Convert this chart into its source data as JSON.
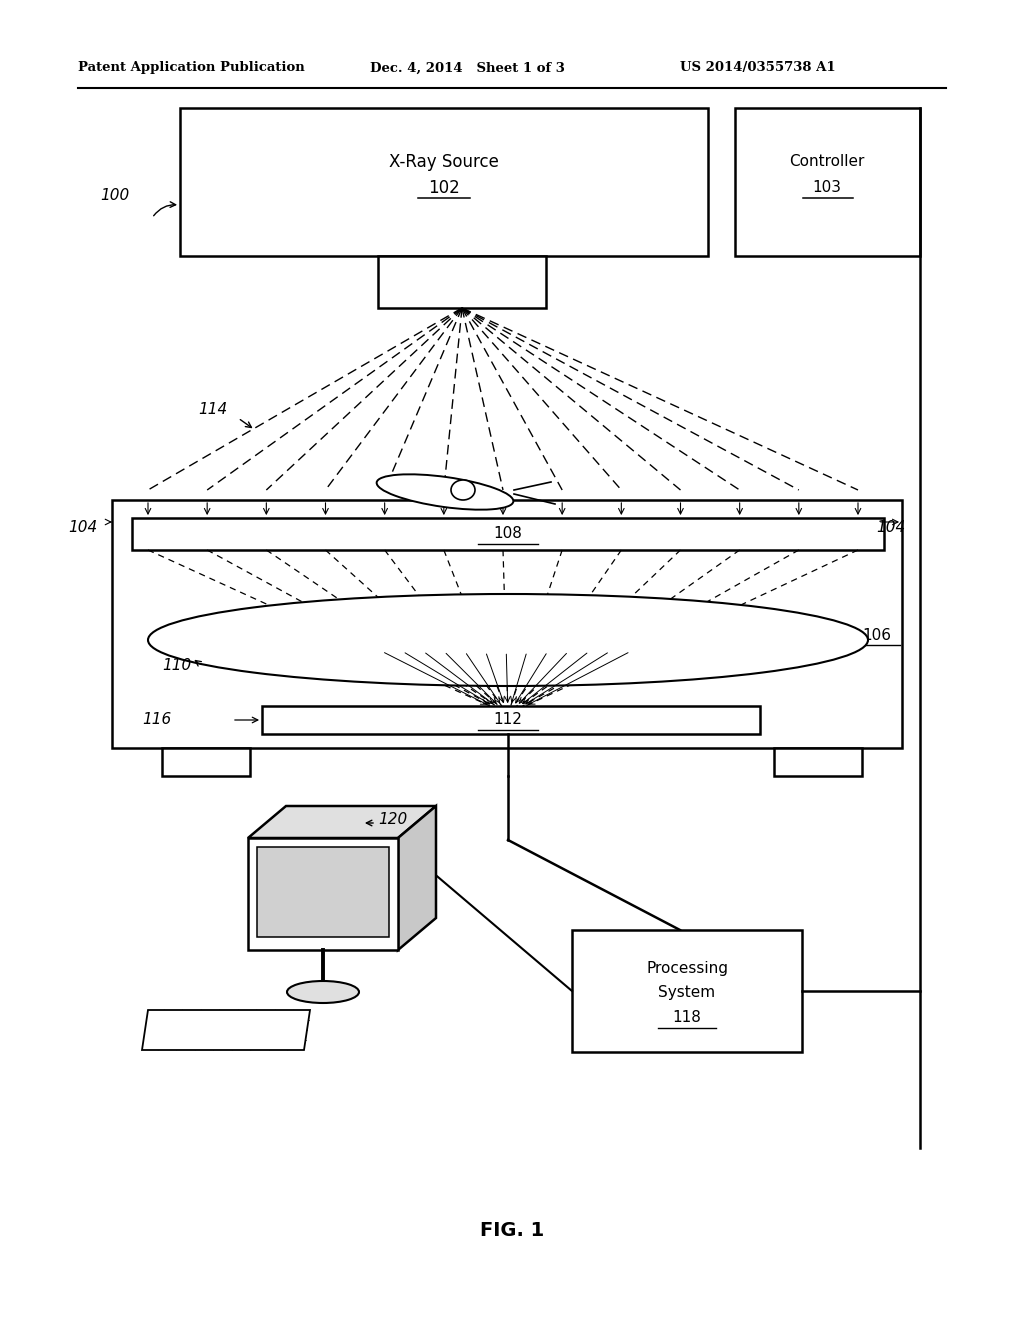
{
  "bg_color": "#ffffff",
  "lc": "#000000",
  "header_left": "Patent Application Publication",
  "header_mid": "Dec. 4, 2014   Sheet 1 of 3",
  "header_right": "US 2014/0355738 A1",
  "fig_label": "FIG. 1",
  "xray_text1": "X-Ray Source",
  "xray_ref": "102",
  "ctrl_text": "Controller",
  "ctrl_ref": "103",
  "ref_108": "108",
  "ref_112": "112",
  "ref_106": "106",
  "ref_110": "110",
  "ref_116": "116",
  "ref_114": "114",
  "ref_104": "104",
  "ref_100": "100",
  "ref_120": "120",
  "proc_text1": "Processing",
  "proc_text2": "System",
  "proc_ref": "118"
}
